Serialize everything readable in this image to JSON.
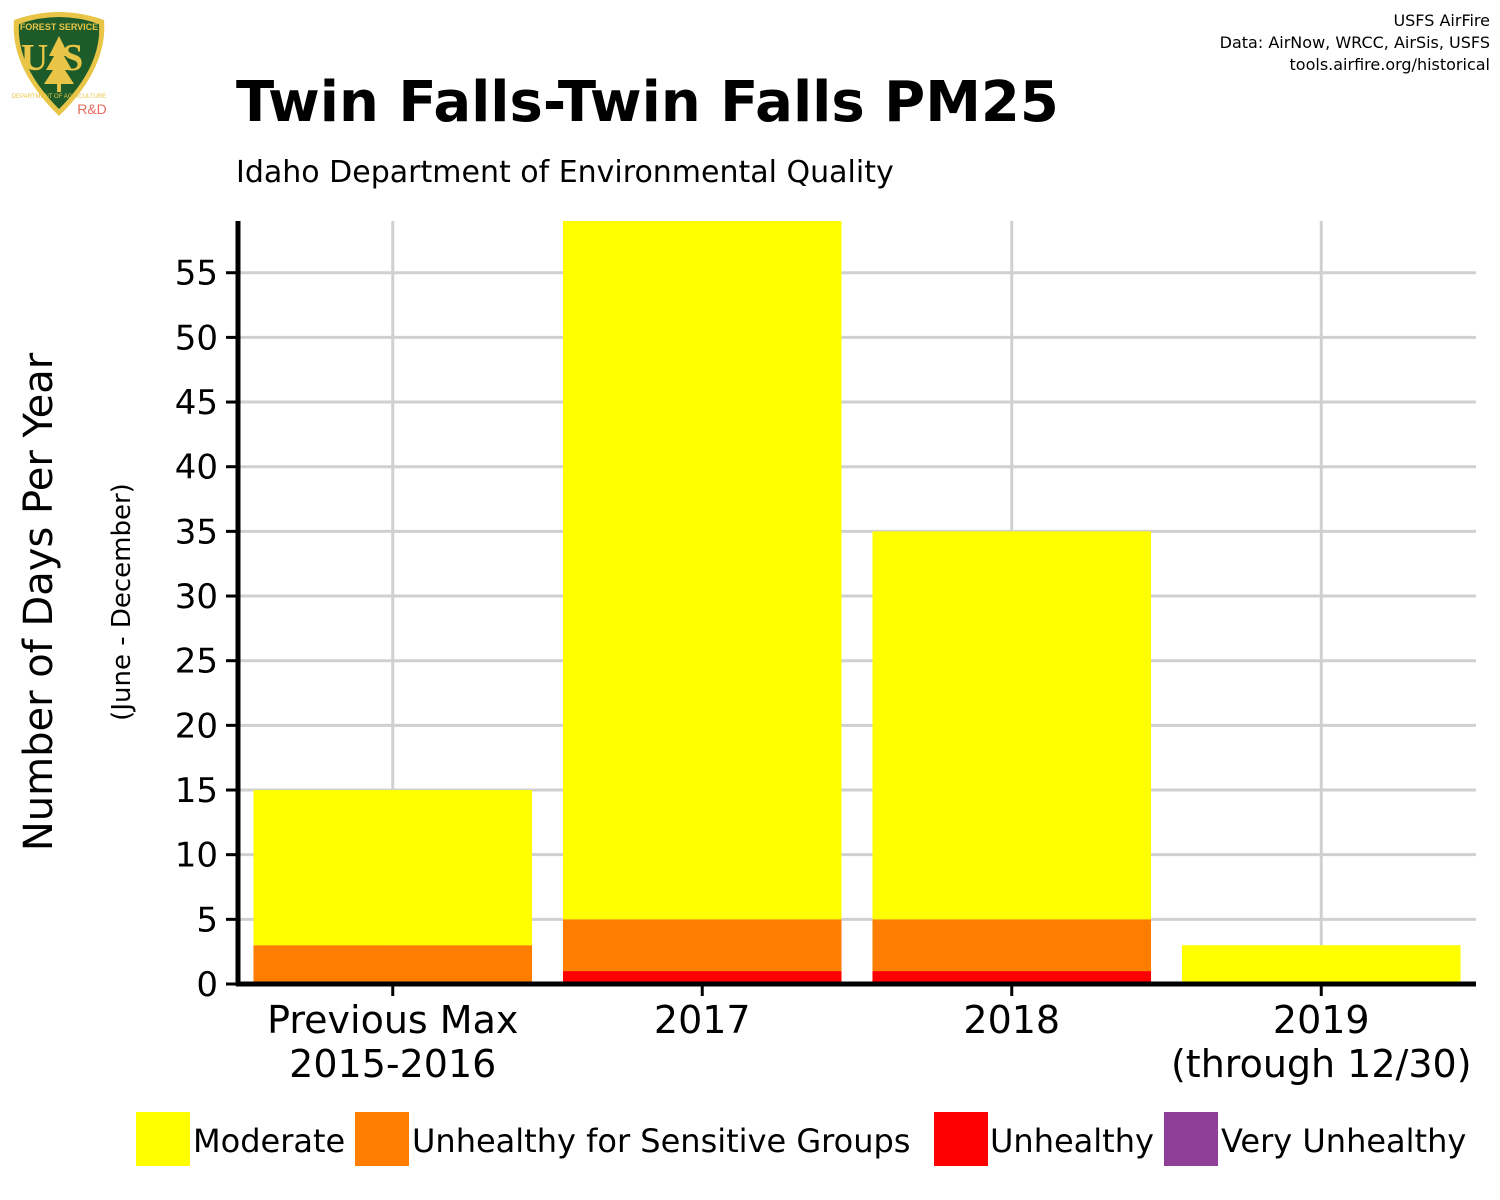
{
  "credits": {
    "line1": "USFS AirFire",
    "line2": "Data: AirNow, WRCC, AirSis, USFS",
    "line3": "tools.airfire.org/historical"
  },
  "logo": {
    "top_text": "FOREST SERVICE",
    "letters": "US",
    "bottom_text": "DEPARTMENT OF AGRICULTURE",
    "tag": "R&D"
  },
  "colors": {
    "moderate": "#ffff00",
    "usg": "#ff7e00",
    "unhealthy": "#ff0000",
    "very_unhealthy": "#8f3f97",
    "grid": "#d0d0d0",
    "logo_green": "#1d5b2a",
    "logo_gold": "#e8c547",
    "logo_red": "#e86b5c"
  },
  "chart_data": {
    "type": "bar",
    "stacked": true,
    "title": "Twin Falls-Twin Falls PM25",
    "subtitle": "Idaho Department of Environmental Quality",
    "ylabel": "Number of Days Per Year",
    "ylabel_sub": "(June - December)",
    "xlabel": "",
    "categories": [
      [
        "Previous Max",
        "2015-2016"
      ],
      [
        "2017"
      ],
      [
        "2018"
      ],
      [
        "2019",
        "(through 12/30)"
      ]
    ],
    "series": [
      {
        "name": "Moderate",
        "color": "#ffff00",
        "values": [
          12,
          54,
          30,
          3
        ]
      },
      {
        "name": "Unhealthy for Sensitive Groups",
        "color": "#ff7e00",
        "values": [
          3,
          4,
          4,
          0
        ]
      },
      {
        "name": "Unhealthy",
        "color": "#ff0000",
        "values": [
          0,
          1,
          1,
          0
        ]
      },
      {
        "name": "Very Unhealthy",
        "color": "#8f3f97",
        "values": [
          0,
          0,
          0,
          0
        ]
      }
    ],
    "stack_order_bottom_to_top": [
      "Unhealthy",
      "Unhealthy for Sensitive Groups",
      "Moderate"
    ],
    "ylim": [
      0,
      59
    ],
    "yticks": [
      0,
      5,
      10,
      15,
      20,
      25,
      30,
      35,
      40,
      45,
      50,
      55
    ],
    "grid": true,
    "legend_position": "bottom"
  }
}
